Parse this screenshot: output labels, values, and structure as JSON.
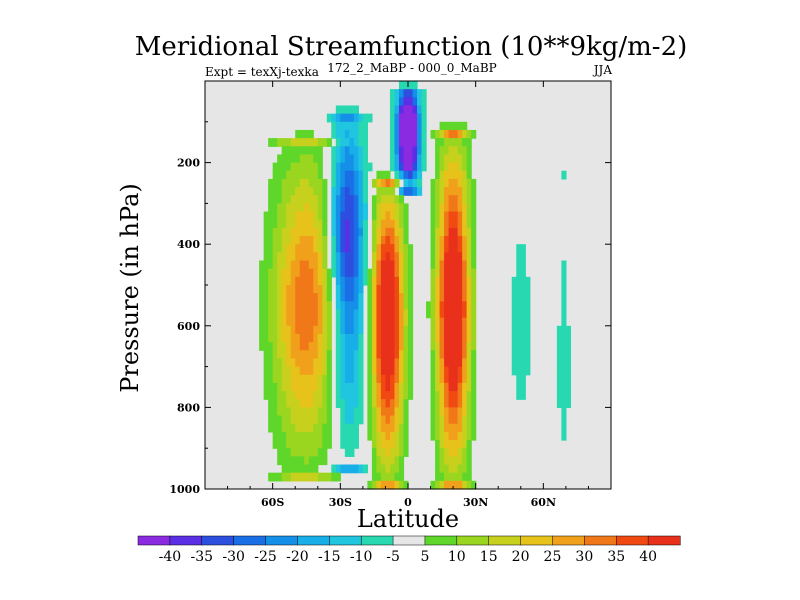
{
  "chart_data": {
    "type": "contour",
    "title": "Meridional Streamfunction (10**9kg/m-2)",
    "left_subtitle": "Expt = texXj-texka",
    "center_subtitle": "172_2_MaBP - 000_0_MaBP",
    "right_subtitle": "JJA",
    "xlabel": "Latitude",
    "ylabel": "Pressure (in hPa)",
    "xlim": [
      -90,
      90
    ],
    "ylim": [
      1000,
      0
    ],
    "x_ticks": [
      {
        "value": -60,
        "label": "60S"
      },
      {
        "value": -30,
        "label": "30S"
      },
      {
        "value": 0,
        "label": "0"
      },
      {
        "value": 30,
        "label": "30N"
      },
      {
        "value": 60,
        "label": "60N"
      }
    ],
    "y_ticks": [
      {
        "value": 200,
        "label": "200"
      },
      {
        "value": 400,
        "label": "400"
      },
      {
        "value": 600,
        "label": "600"
      },
      {
        "value": 800,
        "label": "800"
      },
      {
        "value": 1000,
        "label": "1000"
      }
    ],
    "contour_levels": [
      -40,
      -35,
      -30,
      -25,
      -20,
      -15,
      -10,
      -5,
      5,
      10,
      15,
      20,
      25,
      30,
      35,
      40
    ],
    "colorbar_labels": [
      "-40",
      "-35",
      "-30",
      "-25",
      "-20",
      "-15",
      "-10",
      "-5",
      "5",
      "10",
      "15",
      "20",
      "25",
      "30",
      "35",
      "40"
    ],
    "colors": [
      "#8a2be2",
      "#5a2fe6",
      "#2c4fe0",
      "#1b6fe6",
      "#1590e8",
      "#18aee8",
      "#20c6e0",
      "#28d8b0",
      "#e6e6e6",
      "#5fd62a",
      "#9ad620",
      "#c8d01e",
      "#e6c21a",
      "#f0a01a",
      "#f07818",
      "#f04a12",
      "#e8301a"
    ],
    "background_color": "#e6e6e6",
    "features": [
      {
        "name": "sh-subtropical-cell",
        "lat": -45,
        "p": 550,
        "value": 23,
        "lat_half_width": 15,
        "p_top": 160,
        "p_bottom": 960
      },
      {
        "name": "sh-ferrel-cell",
        "lat": -27,
        "p": 390,
        "value": -28,
        "lat_half_width": 8,
        "p_top": 100,
        "p_bottom": 940
      },
      {
        "name": "tropical-cell-south",
        "lat": -9,
        "p": 580,
        "value": 37,
        "lat_half_width": 7,
        "p_top": 260,
        "p_bottom": 980
      },
      {
        "name": "equatorial-upper-minimum",
        "lat": 0,
        "p": 120,
        "value": -42,
        "lat_half_width": 5,
        "p_top": 40,
        "p_bottom": 260
      },
      {
        "name": "tropical-cell-north",
        "lat": 20,
        "p": 560,
        "value": 39,
        "lat_half_width": 7,
        "p_top": 140,
        "p_bottom": 980
      },
      {
        "name": "nh-weak-negative",
        "lat": 50,
        "p": 600,
        "value": -6,
        "lat_half_width": 5,
        "p_top": 300,
        "p_bottom": 840
      },
      {
        "name": "nh-high-lat-negative",
        "lat": 69,
        "p": 700,
        "value": -6,
        "lat_half_width": 3,
        "p_top": 240,
        "p_bottom": 940
      }
    ]
  }
}
